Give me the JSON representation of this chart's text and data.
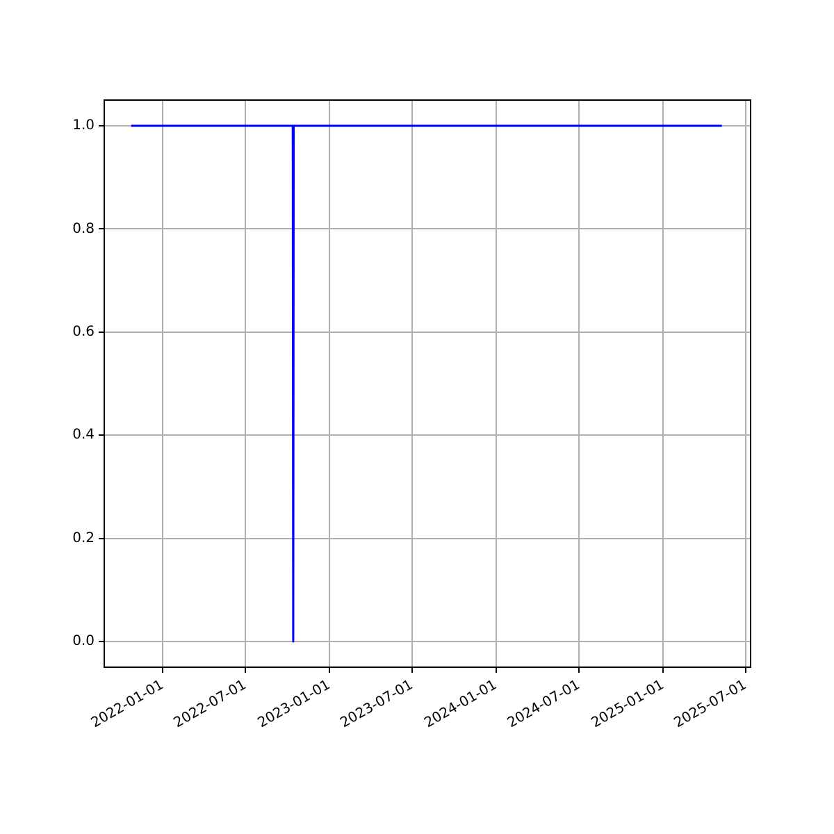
{
  "chart_data": {
    "type": "line",
    "x": [
      "2021-10-24",
      "2022-10-13",
      "2022-10-14",
      "2022-10-15",
      "2025-05-10"
    ],
    "series": [
      {
        "color": "#0000ff",
        "values": [
          1,
          1,
          0,
          1,
          1
        ]
      }
    ],
    "xlim": [
      "2021-08-26",
      "2025-07-12"
    ],
    "xticks": [
      "2022-01-01",
      "2022-07-01",
      "2023-01-01",
      "2023-07-01",
      "2024-01-01",
      "2024-07-01",
      "2025-01-01",
      "2025-07-01"
    ],
    "ylim": [
      -0.05,
      1.05
    ],
    "yticks": [
      {
        "value": 0,
        "label": "0.0"
      },
      {
        "value": 0.2,
        "label": "0.2"
      },
      {
        "value": 0.4,
        "label": "0.4"
      },
      {
        "value": 0.6,
        "label": "0.6"
      },
      {
        "value": 0.8,
        "label": "0.8"
      },
      {
        "value": 1,
        "label": "1.0"
      }
    ],
    "grid": true,
    "legend": false,
    "marker": "none",
    "line_style": "solid"
  }
}
